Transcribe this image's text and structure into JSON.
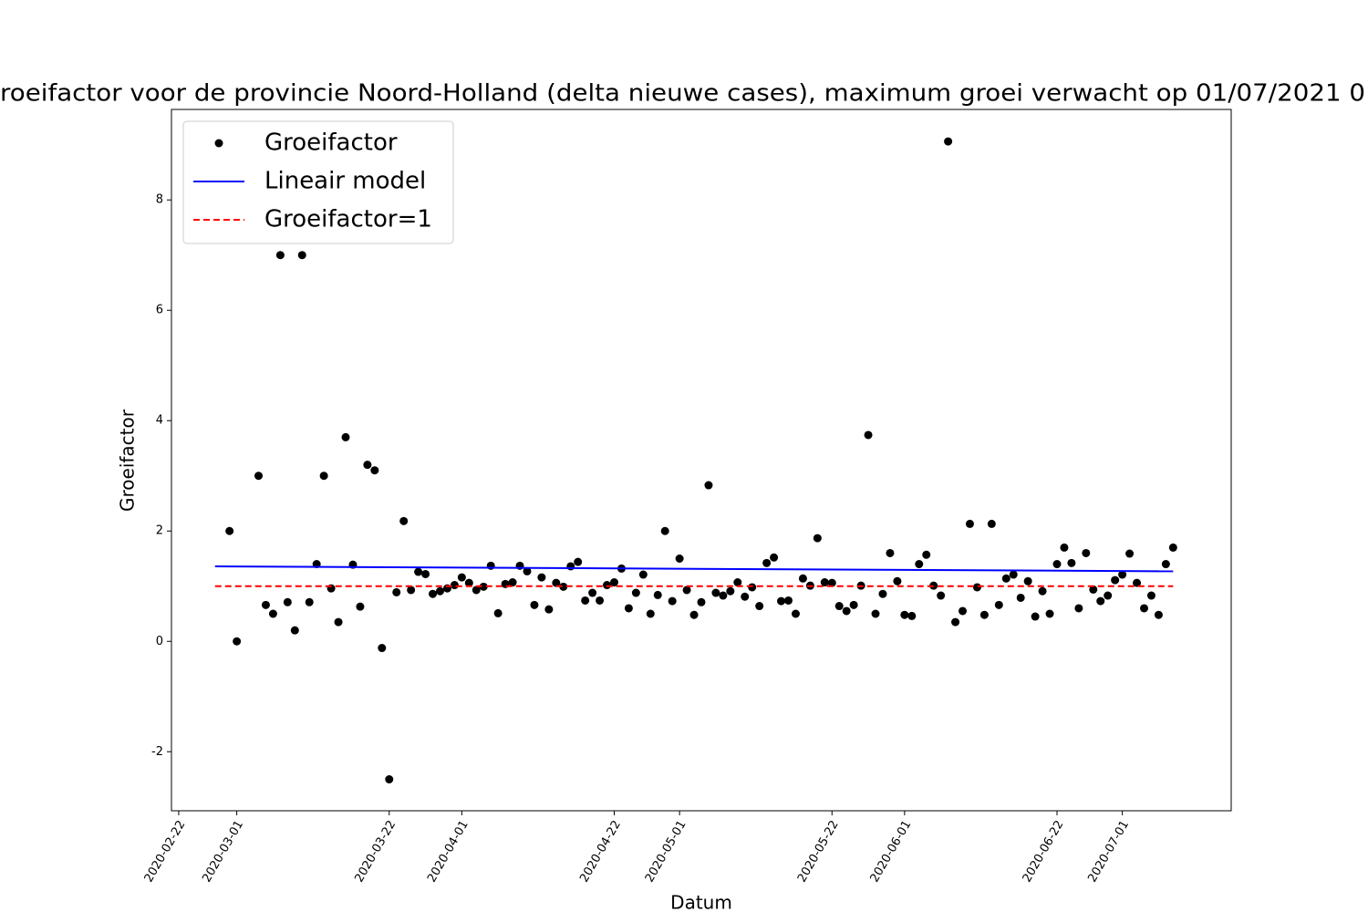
{
  "chart_data": {
    "type": "scatter",
    "title": "roeifactor voor de provincie Noord-Holland (delta nieuwe cases), maximum groei verwacht op 01/07/2021 0",
    "xlabel": "Datum",
    "ylabel": "Groeifactor",
    "xlim": [
      "2020-02-21",
      "2020-07-16"
    ],
    "ylim": [
      -3.07,
      9.64
    ],
    "xticks": [
      "2020-02-22",
      "2020-03-01",
      "2020-03-22",
      "2020-04-01",
      "2020-04-22",
      "2020-05-01",
      "2020-05-22",
      "2020-06-01",
      "2020-06-22",
      "2020-07-01"
    ],
    "yticks": [
      -2,
      0,
      2,
      4,
      6,
      8
    ],
    "legend": "upper left",
    "series": [
      {
        "name": "Groeifactor",
        "style": "marker",
        "color": "#000000",
        "x": [
          "2020-02-29",
          "2020-03-01",
          "2020-03-04",
          "2020-03-05",
          "2020-03-06",
          "2020-03-07",
          "2020-03-08",
          "2020-03-09",
          "2020-03-10",
          "2020-03-11",
          "2020-03-12",
          "2020-03-13",
          "2020-03-14",
          "2020-03-15",
          "2020-03-16",
          "2020-03-17",
          "2020-03-18",
          "2020-03-19",
          "2020-03-20",
          "2020-03-21",
          "2020-03-22",
          "2020-03-23",
          "2020-03-24",
          "2020-03-25",
          "2020-03-26",
          "2020-03-27",
          "2020-03-28",
          "2020-03-29",
          "2020-03-30",
          "2020-03-31",
          "2020-04-01",
          "2020-04-02",
          "2020-04-03",
          "2020-04-04",
          "2020-04-05",
          "2020-04-06",
          "2020-04-07",
          "2020-04-08",
          "2020-04-09",
          "2020-04-10",
          "2020-04-11",
          "2020-04-12",
          "2020-04-13",
          "2020-04-14",
          "2020-04-15",
          "2020-04-16",
          "2020-04-17",
          "2020-04-18",
          "2020-04-19",
          "2020-04-20",
          "2020-04-21",
          "2020-04-22",
          "2020-04-23",
          "2020-04-24",
          "2020-04-25",
          "2020-04-26",
          "2020-04-27",
          "2020-04-28",
          "2020-04-29",
          "2020-04-30",
          "2020-05-01",
          "2020-05-02",
          "2020-05-03",
          "2020-05-04",
          "2020-05-05",
          "2020-05-06",
          "2020-05-07",
          "2020-05-08",
          "2020-05-09",
          "2020-05-10",
          "2020-05-11",
          "2020-05-12",
          "2020-05-13",
          "2020-05-14",
          "2020-05-15",
          "2020-05-16",
          "2020-05-17",
          "2020-05-18",
          "2020-05-19",
          "2020-05-20",
          "2020-05-21",
          "2020-05-22",
          "2020-05-23",
          "2020-05-24",
          "2020-05-25",
          "2020-05-26",
          "2020-05-27",
          "2020-05-28",
          "2020-05-29",
          "2020-05-30",
          "2020-05-31",
          "2020-06-01",
          "2020-06-02",
          "2020-06-03",
          "2020-06-04",
          "2020-06-05",
          "2020-06-06",
          "2020-06-07",
          "2020-06-08",
          "2020-06-09",
          "2020-06-10",
          "2020-06-11",
          "2020-06-12",
          "2020-06-13",
          "2020-06-14",
          "2020-06-15",
          "2020-06-16",
          "2020-06-17",
          "2020-06-18",
          "2020-06-19",
          "2020-06-20",
          "2020-06-21",
          "2020-06-22",
          "2020-06-23",
          "2020-06-24",
          "2020-06-25",
          "2020-06-26",
          "2020-06-27",
          "2020-06-28",
          "2020-06-29",
          "2020-06-30",
          "2020-07-01",
          "2020-07-02",
          "2020-07-03",
          "2020-07-04",
          "2020-07-05",
          "2020-07-06",
          "2020-07-07",
          "2020-07-08"
        ],
        "values": [
          2.0,
          0,
          3.0,
          0.66,
          0.5,
          7.0,
          0.71,
          0.2,
          7.0,
          0.71,
          1.4,
          3.0,
          0.96,
          0.35,
          3.7,
          1.39,
          0.63,
          3.2,
          3.1,
          -0.12,
          -2.5,
          0.89,
          2.18,
          0.93,
          1.26,
          1.22,
          0.86,
          0.91,
          0.96,
          1.02,
          1.16,
          1.06,
          0.93,
          0.99,
          1.37,
          0.51,
          1.04,
          1.07,
          1.37,
          1.27,
          0.66,
          1.16,
          0.58,
          1.06,
          0.99,
          1.36,
          1.44,
          0.74,
          0.88,
          0.74,
          1.02,
          1.07,
          1.32,
          0.6,
          0.88,
          1.21,
          0.5,
          0.84,
          2.0,
          0.73,
          1.5,
          0.93,
          0.48,
          0.71,
          2.83,
          0.88,
          0.83,
          0.91,
          1.07,
          0.81,
          0.98,
          0.64,
          1.42,
          1.52,
          0.73,
          0.74,
          0.5,
          1.14,
          1.01,
          1.87,
          1.07,
          1.06,
          0.64,
          0.55,
          0.66,
          1.01,
          3.74,
          0.5,
          0.86,
          1.6,
          1.09,
          0.48,
          0.46,
          1.4,
          1.57,
          1.01,
          0.83,
          9.06,
          0.35,
          0.55,
          2.13,
          0.98,
          0.48,
          2.13,
          0.66,
          1.14,
          1.21,
          0.79,
          1.09,
          0.45,
          0.91,
          0.5,
          1.4,
          1.7,
          1.42,
          0.6,
          1.6,
          0.94,
          0.73,
          0.83,
          1.11,
          1.21,
          1.59,
          1.06,
          0.6,
          0.83,
          0.48,
          1.4,
          1.7
        ]
      },
      {
        "name": "Lineair model",
        "style": "line",
        "color": "#0000ff",
        "x": [
          "2020-02-27",
          "2020-07-08"
        ],
        "values": [
          1.36,
          1.27
        ]
      },
      {
        "name": "Groeifactor=1",
        "style": "dashed",
        "color": "#ff0000",
        "x": [
          "2020-02-27",
          "2020-07-08"
        ],
        "values": [
          1,
          1
        ]
      }
    ]
  }
}
